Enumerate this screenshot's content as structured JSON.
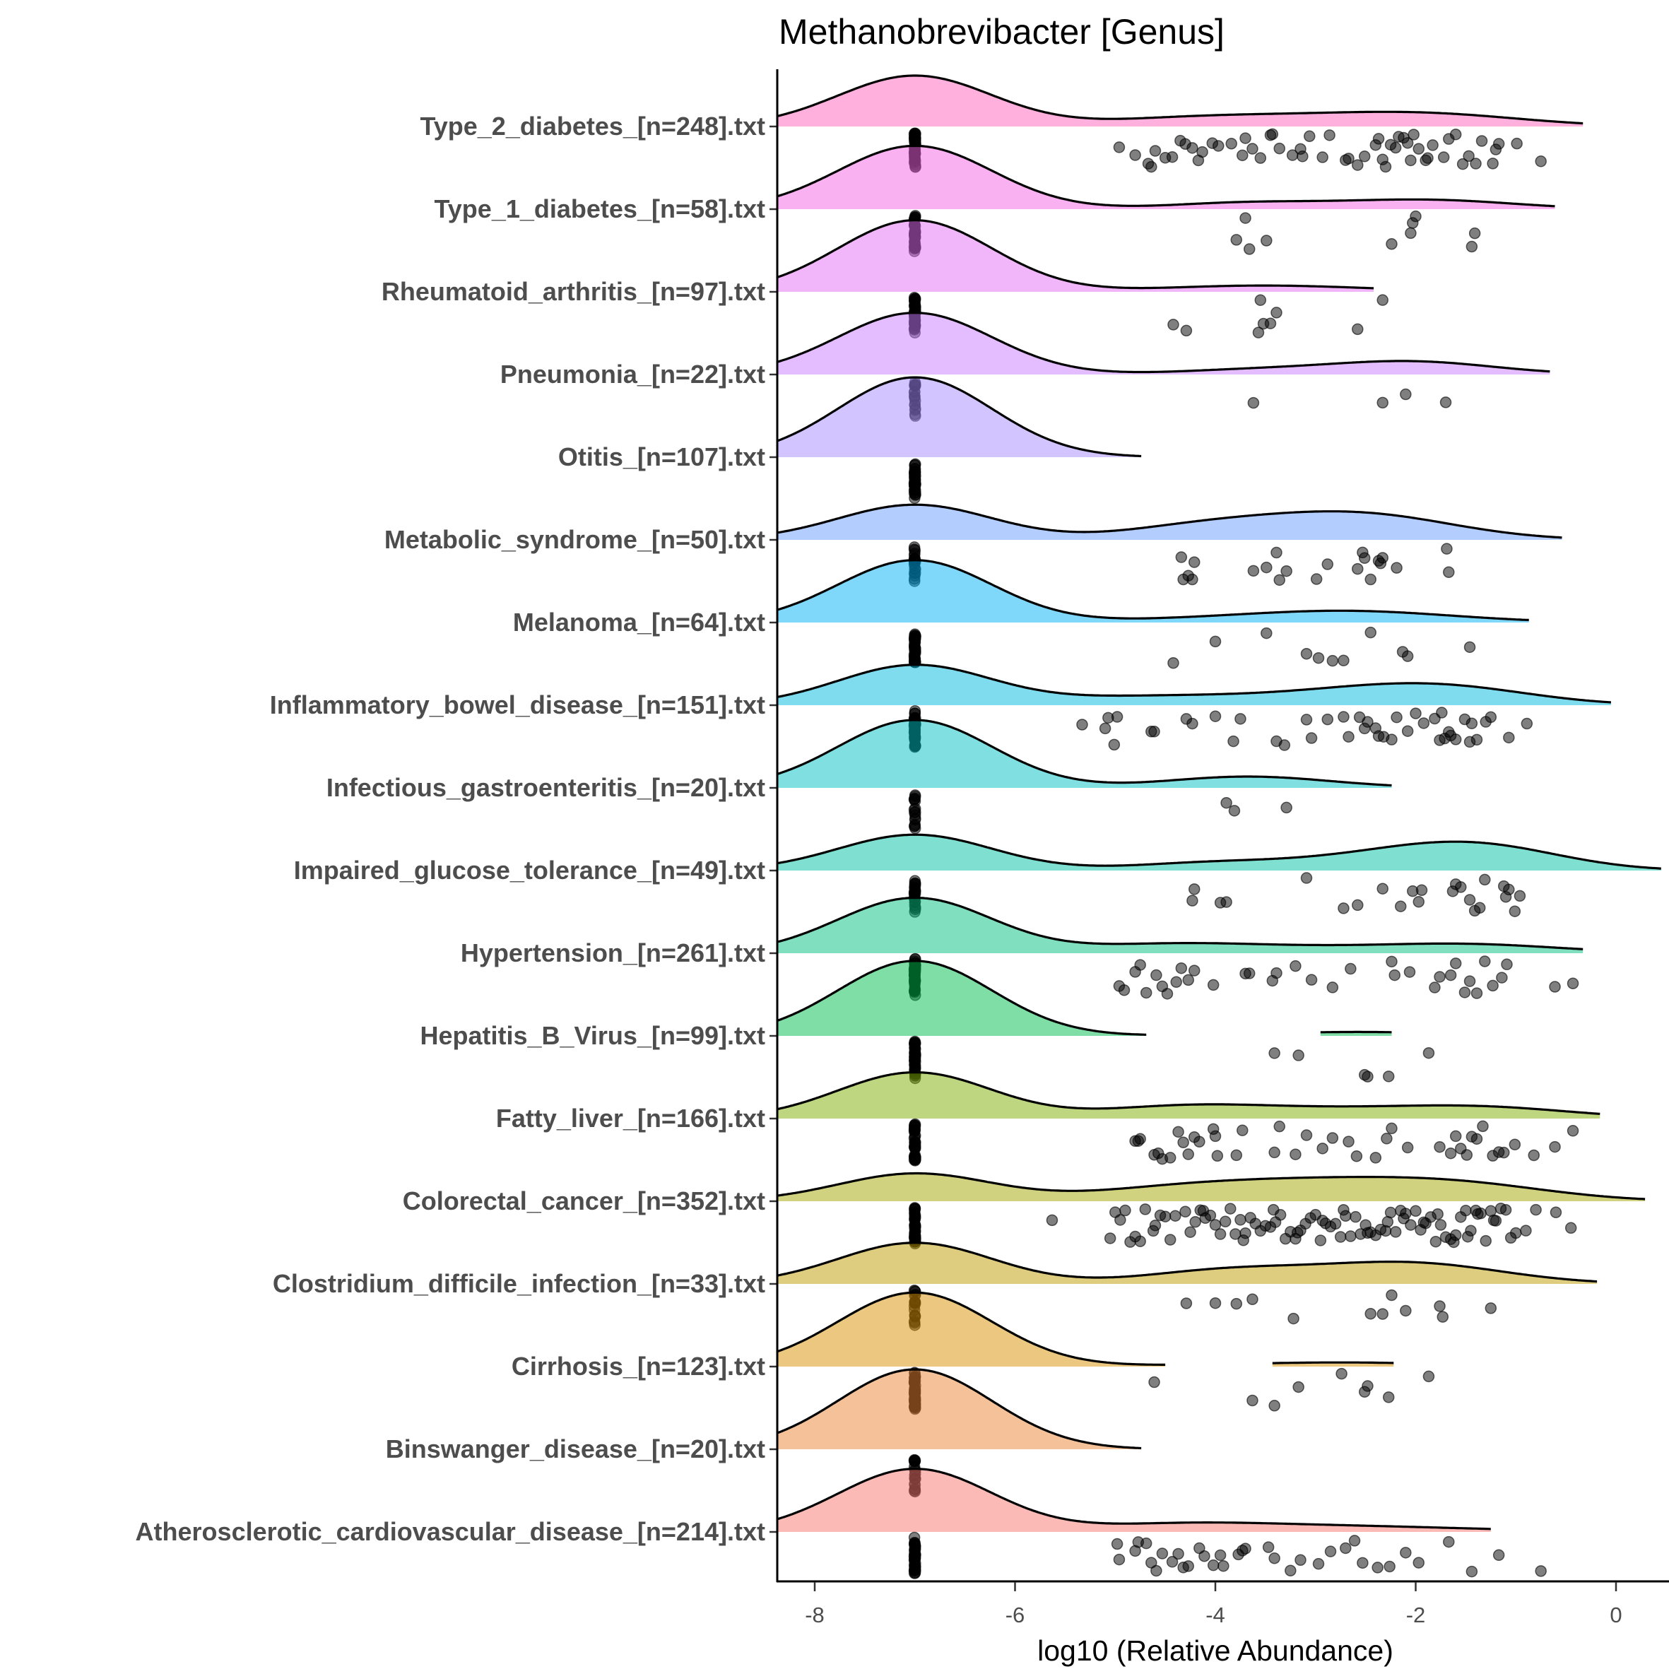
{
  "chart_data": {
    "type": "ridgeline-raincloud",
    "title": "Methanobrevibacter [Genus]",
    "xlabel": "log10 (Relative Abundance)",
    "ylabel": "",
    "xlim": [
      -8.4,
      0.45
    ],
    "xticks": [
      -8,
      -6,
      -4,
      -2,
      0
    ],
    "xtick_labels": [
      "-8",
      "-6",
      "-4",
      "-2",
      "0"
    ],
    "zero_value": -7,
    "grid": false,
    "legend": "none",
    "groups": [
      {
        "label": "Type_2_diabetes_[n=248].txt",
        "n": 248,
        "nonzero_n": 90,
        "color": "#FF62BC",
        "density_range": [
          [
            -8.4,
            -0.33
          ]
        ],
        "points": [
          -4.96,
          -4.8,
          -4.67,
          -4.64,
          -4.6,
          -4.5,
          -4.43,
          -4.35,
          -4.3,
          -4.23,
          -4.17,
          -4.13,
          -4.03,
          -3.97,
          -3.84,
          -3.73,
          -3.7,
          -3.63,
          -3.55,
          -3.45,
          -3.43,
          -3.36,
          -3.23,
          -3.15,
          -3.13,
          -3.06,
          -2.93,
          -2.86,
          -2.7,
          -2.67,
          -2.58,
          -2.51,
          -2.4,
          -2.37,
          -2.33,
          -2.3,
          -2.25,
          -2.2,
          -2.17,
          -2.12,
          -2.08,
          -2.05,
          -2.02,
          -1.97,
          -1.9,
          -1.88,
          -1.83,
          -1.72,
          -1.67,
          -1.6,
          -1.53,
          -1.47,
          -1.4,
          -1.34,
          -1.23,
          -1.2,
          -1.17,
          -0.99,
          -0.75
        ]
      },
      {
        "label": "Type_1_diabetes_[n=58].txt",
        "n": 58,
        "nonzero_n": 12,
        "color": "#F564E3",
        "density_range": [
          [
            -8.4,
            -0.61
          ]
        ],
        "points": [
          -3.79,
          -3.7,
          -3.66,
          -3.49,
          -2.24,
          -2.03,
          -2.0,
          -2.05,
          -1.44,
          -1.41
        ]
      },
      {
        "label": "Rheumatoid_arthritis_[n=97].txt",
        "n": 97,
        "nonzero_n": 10,
        "color": "#E36EF6",
        "density_range": [
          [
            -8.4,
            -2.42
          ]
        ],
        "points": [
          -4.42,
          -4.29,
          -3.57,
          -3.55,
          -3.45,
          -3.52,
          -3.39,
          -2.58,
          -2.33
        ]
      },
      {
        "label": "Pneumonia_[n=22].txt",
        "n": 22,
        "nonzero_n": 5,
        "color": "#C77CFF",
        "density_range": [
          [
            -8.4,
            -0.66
          ]
        ],
        "points": [
          -3.62,
          -2.33,
          -2.1,
          -1.7
        ]
      },
      {
        "label": "Otitis_[n=107].txt",
        "n": 107,
        "nonzero_n": 0,
        "color": "#A58AFF",
        "density_range": [
          [
            -8.4,
            -4.74
          ]
        ],
        "points": []
      },
      {
        "label": "Metabolic_syndrome_[n=50].txt",
        "n": 50,
        "nonzero_n": 28,
        "color": "#6A9CFF",
        "density_range": [
          [
            -8.4,
            -0.54
          ]
        ],
        "points": [
          -4.34,
          -4.32,
          -4.27,
          -4.23,
          -4.21,
          -3.62,
          -3.49,
          -3.39,
          -3.36,
          -3.29,
          -2.99,
          -2.88,
          -2.58,
          -2.53,
          -2.51,
          -2.45,
          -2.37,
          -2.35,
          -2.33,
          -2.19,
          -1.69,
          -1.67
        ]
      },
      {
        "label": "Melanoma_[n=64].txt",
        "n": 64,
        "nonzero_n": 14,
        "color": "#00B0F6",
        "density_range": [
          [
            -8.4,
            -0.87
          ]
        ],
        "points": [
          -4.42,
          -4.0,
          -3.49,
          -3.09,
          -2.97,
          -2.83,
          -2.72,
          -2.45,
          -2.13,
          -2.08,
          -1.46
        ]
      },
      {
        "label": "Inflammatory_bowel_disease_[n=151].txt",
        "n": 151,
        "nonzero_n": 75,
        "color": "#00BAE0",
        "density_range": [
          [
            -8.4,
            -0.05
          ]
        ],
        "points": [
          -5.33,
          -5.1,
          -5.07,
          -5.01,
          -4.98,
          -4.64,
          -4.61,
          -4.29,
          -4.23,
          -4.0,
          -3.82,
          -3.75,
          -3.39,
          -3.31,
          -3.09,
          -3.04,
          -2.88,
          -2.72,
          -2.67,
          -2.56,
          -2.51,
          -2.48,
          -2.4,
          -2.37,
          -2.32,
          -2.24,
          -2.19,
          -2.08,
          -2.0,
          -1.92,
          -1.81,
          -1.76,
          -1.74,
          -1.71,
          -1.67,
          -1.65,
          -1.6,
          -1.51,
          -1.46,
          -1.44,
          -1.39,
          -1.3,
          -1.25,
          -1.07,
          -0.89
        ]
      },
      {
        "label": "Infectious_gastroenteritis_[n=20].txt",
        "n": 20,
        "nonzero_n": 3,
        "color": "#00BFC4",
        "density_range": [
          [
            -8.4,
            -2.24
          ]
        ],
        "points": [
          -3.89,
          -3.81,
          -3.29
        ]
      },
      {
        "label": "Impaired_glucose_tolerance_[n=49].txt",
        "n": 49,
        "nonzero_n": 27,
        "color": "#00C1A3",
        "density_range": [
          [
            -8.4,
            0.45
          ]
        ],
        "points": [
          -4.23,
          -4.21,
          -3.95,
          -3.89,
          -3.09,
          -2.72,
          -2.58,
          -2.33,
          -2.15,
          -2.03,
          -1.97,
          -1.94,
          -1.63,
          -1.6,
          -1.55,
          -1.46,
          -1.41,
          -1.36,
          -1.31,
          -1.12,
          -1.1,
          -1.07,
          -1.01,
          -0.96
        ]
      },
      {
        "label": "Hypertension_[n=261].txt",
        "n": 261,
        "nonzero_n": 80,
        "color": "#00BF7D",
        "density_range": [
          [
            -8.4,
            -0.33
          ]
        ],
        "points": [
          -4.96,
          -4.91,
          -4.8,
          -4.75,
          -4.69,
          -4.59,
          -4.53,
          -4.48,
          -4.39,
          -4.34,
          -4.27,
          -4.21,
          -4.02,
          -3.7,
          -3.66,
          -3.43,
          -3.39,
          -3.2,
          -3.04,
          -2.83,
          -2.65,
          -2.24,
          -2.21,
          -2.06,
          -1.81,
          -1.76,
          -1.65,
          -1.6,
          -1.51,
          -1.46,
          -1.39,
          -1.31,
          -1.23,
          -1.14,
          -1.09,
          -0.61,
          -0.43
        ]
      },
      {
        "label": "Hepatitis_B_Virus_[n=99].txt",
        "n": 99,
        "nonzero_n": 6,
        "color": "#00BB4E",
        "density_range": [
          [
            -8.4,
            -4.69
          ],
          [
            -2.95,
            -2.24
          ]
        ],
        "points": [
          -3.41,
          -3.17,
          -2.51,
          -2.48,
          -2.27,
          -1.87
        ]
      },
      {
        "label": "Fatty_liver_[n=166].txt",
        "n": 166,
        "nonzero_n": 70,
        "color": "#7CAE00",
        "density_range": [
          [
            -8.4,
            -0.16
          ]
        ],
        "points": [
          -4.8,
          -4.77,
          -4.75,
          -4.61,
          -4.57,
          -4.53,
          -4.45,
          -4.37,
          -4.32,
          -4.27,
          -4.21,
          -4.16,
          -4.02,
          -4.0,
          -3.98,
          -3.79,
          -3.73,
          -3.41,
          -3.36,
          -3.2,
          -3.09,
          -2.93,
          -2.83,
          -2.67,
          -2.59,
          -2.4,
          -2.29,
          -2.24,
          -2.08,
          -1.76,
          -1.65,
          -1.6,
          -1.55,
          -1.49,
          -1.44,
          -1.39,
          -1.33,
          -1.23,
          -1.17,
          -1.12,
          -1.01,
          -0.82,
          -0.61,
          -0.43
        ]
      },
      {
        "label": "Colorectal_cancer_[n=352].txt",
        "n": 352,
        "nonzero_n": 230,
        "color": "#A3A500",
        "density_range": [
          [
            -8.4,
            0.29
          ]
        ],
        "points": [
          -5.63,
          -5.05,
          -5.0,
          -4.95,
          -4.9,
          -4.85,
          -4.8,
          -4.75,
          -4.7,
          -4.62,
          -4.6,
          -4.55,
          -4.5,
          -4.45,
          -4.4,
          -4.3,
          -4.25,
          -4.2,
          -4.15,
          -4.12,
          -4.1,
          -4.05,
          -4.0,
          -3.95,
          -3.9,
          -3.85,
          -3.8,
          -3.75,
          -3.72,
          -3.7,
          -3.65,
          -3.6,
          -3.55,
          -3.5,
          -3.45,
          -3.42,
          -3.4,
          -3.35,
          -3.3,
          -3.25,
          -3.2,
          -3.18,
          -3.15,
          -3.1,
          -3.05,
          -3.0,
          -2.95,
          -2.93,
          -2.9,
          -2.85,
          -2.8,
          -2.75,
          -2.72,
          -2.7,
          -2.65,
          -2.6,
          -2.55,
          -2.5,
          -2.48,
          -2.45,
          -2.4,
          -2.35,
          -2.3,
          -2.28,
          -2.25,
          -2.2,
          -2.15,
          -2.12,
          -2.1,
          -2.05,
          -2.0,
          -1.95,
          -1.92,
          -1.9,
          -1.85,
          -1.8,
          -1.78,
          -1.75,
          -1.7,
          -1.65,
          -1.62,
          -1.6,
          -1.55,
          -1.5,
          -1.48,
          -1.45,
          -1.4,
          -1.38,
          -1.35,
          -1.3,
          -1.25,
          -1.22,
          -1.2,
          -1.15,
          -1.1,
          -1.05,
          -1.0,
          -0.9,
          -0.8,
          -0.6,
          -0.45
        ]
      },
      {
        "label": "Clostridium_difficile_infection_[n=33].txt",
        "n": 33,
        "nonzero_n": 16,
        "color": "#C09B00",
        "density_range": [
          [
            -8.4,
            -0.19
          ]
        ],
        "points": [
          -4.29,
          -4.0,
          -3.79,
          -3.63,
          -3.22,
          -2.45,
          -2.33,
          -2.24,
          -2.1,
          -1.76,
          -1.73,
          -1.25
        ]
      },
      {
        "label": "Cirrhosis_[n=123].txt",
        "n": 123,
        "nonzero_n": 9,
        "color": "#D89000",
        "density_range": [
          [
            -8.4,
            -4.5
          ],
          [
            -3.43,
            -2.22
          ]
        ],
        "points": [
          -4.61,
          -3.63,
          -3.41,
          -3.17,
          -2.74,
          -2.51,
          -2.48,
          -2.27,
          -1.87
        ]
      },
      {
        "label": "Binswanger_disease_[n=20].txt",
        "n": 20,
        "nonzero_n": 0,
        "color": "#EA8331",
        "density_range": [
          [
            -8.4,
            -4.74
          ]
        ],
        "points": []
      },
      {
        "label": "Atherosclerotic_cardiovascular_disease_[n=214].txt",
        "n": 214,
        "nonzero_n": 45,
        "color": "#F8766D",
        "density_range": [
          [
            -8.4,
            -1.25
          ]
        ],
        "points": [
          -4.98,
          -4.96,
          -4.8,
          -4.77,
          -4.69,
          -4.64,
          -4.59,
          -4.53,
          -4.43,
          -4.37,
          -4.32,
          -4.27,
          -4.16,
          -4.11,
          -4.02,
          -3.95,
          -3.92,
          -3.77,
          -3.73,
          -3.7,
          -3.47,
          -3.41,
          -3.25,
          -3.15,
          -2.97,
          -2.85,
          -2.7,
          -2.61,
          -2.53,
          -2.38,
          -2.26,
          -2.1,
          -1.97,
          -1.67,
          -1.44,
          -1.17,
          -0.75
        ]
      }
    ]
  }
}
